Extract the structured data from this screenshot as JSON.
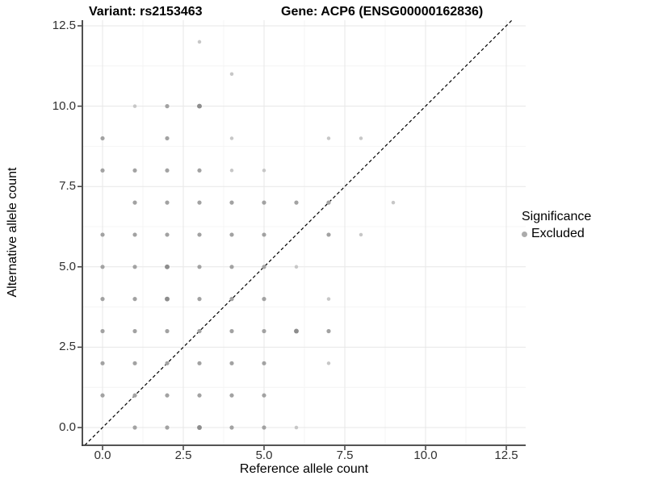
{
  "chart_data": {
    "type": "scatter",
    "title_left": "Variant: rs2153463",
    "title_right": "Gene: ACP6 (ENSG00000162836)",
    "xlabel": "Reference allele count",
    "ylabel": "Alternative allele count",
    "x_ticks": [
      0,
      2.5,
      5,
      7.5,
      10,
      12.5
    ],
    "y_ticks": [
      0,
      2.5,
      5,
      7.5,
      10,
      12.5
    ],
    "x_tick_labels": [
      "0.0",
      "2.5",
      "5.0",
      "7.5",
      "10.0",
      "12.5"
    ],
    "y_tick_labels": [
      "0.0",
      "2.5",
      "5.0",
      "7.5",
      "10.0",
      "12.5"
    ],
    "minor_ticks": [
      1.25,
      3.75,
      6.25,
      8.75,
      11.25
    ],
    "xlim": [
      -0.63,
      13.1
    ],
    "ylim": [
      -0.55,
      12.69
    ],
    "grid": true,
    "legend": {
      "title": "Significance",
      "items": [
        {
          "label": "Excluded",
          "dot_color": "#ababab"
        }
      ]
    },
    "reference_line": {
      "slope": 1,
      "intercept": 0,
      "style": "dashed",
      "color": "#000000"
    },
    "colors": {
      "grid_major": "#e7e7e7",
      "grid_minor": "#f4f4f4",
      "axis": "#3c3c3c",
      "tick_label": "#303030"
    },
    "point_shades": {
      "1": {
        "color": "#c7c7c7",
        "r": 2.25
      },
      "2": {
        "color": "#a2a2a2",
        "r": 2.6
      },
      "3": {
        "color": "#8d8d8d",
        "r": 2.95
      }
    },
    "series_name": "Excluded",
    "points": [
      [
        3,
        12,
        1
      ],
      [
        4,
        11,
        1
      ],
      [
        1,
        10,
        1
      ],
      [
        2,
        10,
        2
      ],
      [
        3,
        10,
        3
      ],
      [
        0,
        9,
        2
      ],
      [
        2,
        9,
        2
      ],
      [
        4,
        9,
        1
      ],
      [
        7,
        9,
        1
      ],
      [
        8,
        9,
        1
      ],
      [
        0,
        8,
        2
      ],
      [
        1,
        8,
        2
      ],
      [
        2,
        8,
        2
      ],
      [
        3,
        8,
        2
      ],
      [
        4,
        8,
        1
      ],
      [
        5,
        8,
        1
      ],
      [
        1,
        7,
        2
      ],
      [
        2,
        7,
        2
      ],
      [
        3,
        7,
        2
      ],
      [
        4,
        7,
        2
      ],
      [
        5,
        7,
        2
      ],
      [
        6,
        7,
        2
      ],
      [
        7,
        7,
        2
      ],
      [
        9,
        7,
        1
      ],
      [
        0,
        6,
        2
      ],
      [
        1,
        6,
        2
      ],
      [
        2,
        6,
        2
      ],
      [
        3,
        6,
        2
      ],
      [
        4,
        6,
        2
      ],
      [
        5,
        6,
        2
      ],
      [
        7,
        6,
        2
      ],
      [
        8,
        6,
        1
      ],
      [
        0,
        5,
        2
      ],
      [
        1,
        5,
        2
      ],
      [
        2,
        5,
        3
      ],
      [
        3,
        5,
        2
      ],
      [
        4,
        5,
        2
      ],
      [
        5,
        5,
        2
      ],
      [
        6,
        5,
        1
      ],
      [
        0,
        4,
        2
      ],
      [
        1,
        4,
        2
      ],
      [
        2,
        4,
        3
      ],
      [
        3,
        4,
        2
      ],
      [
        4,
        4,
        2
      ],
      [
        5,
        4,
        2
      ],
      [
        7,
        4,
        1
      ],
      [
        0,
        3,
        2
      ],
      [
        1,
        3,
        2
      ],
      [
        2,
        3,
        2
      ],
      [
        3,
        3,
        2
      ],
      [
        4,
        3,
        2
      ],
      [
        5,
        3,
        2
      ],
      [
        6,
        3,
        3
      ],
      [
        7,
        3,
        2
      ],
      [
        0,
        2,
        2
      ],
      [
        1,
        2,
        2
      ],
      [
        2,
        2,
        2
      ],
      [
        3,
        2,
        2
      ],
      [
        4,
        2,
        2
      ],
      [
        5,
        2,
        2
      ],
      [
        7,
        2,
        1
      ],
      [
        0,
        1,
        2
      ],
      [
        1,
        1,
        2
      ],
      [
        2,
        1,
        2
      ],
      [
        3,
        1,
        2
      ],
      [
        4,
        1,
        2
      ],
      [
        5,
        1,
        2
      ],
      [
        1,
        0,
        2
      ],
      [
        2,
        0,
        2
      ],
      [
        3,
        0,
        3
      ],
      [
        4,
        0,
        2
      ],
      [
        5,
        0,
        2
      ],
      [
        6,
        0,
        1
      ]
    ]
  }
}
